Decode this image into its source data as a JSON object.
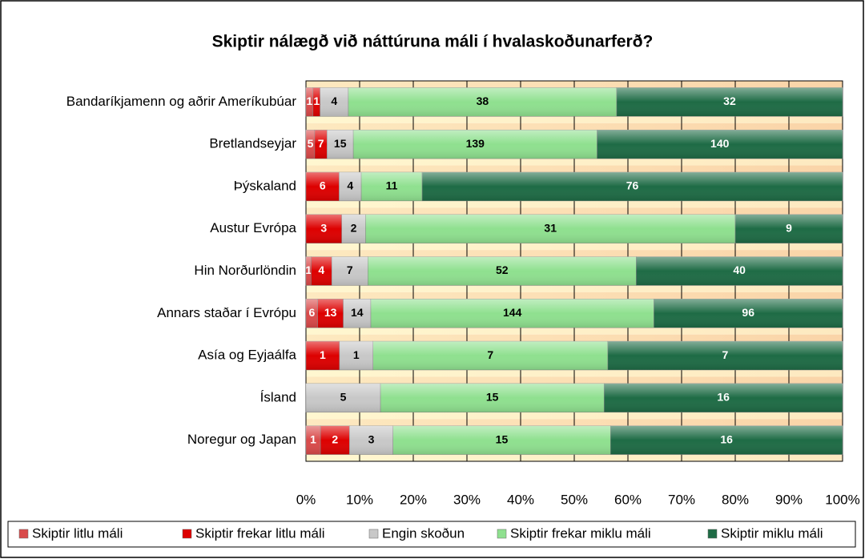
{
  "chart_data": {
    "type": "stacked_percent_barh",
    "title": "Skiptir nálægð við náttúruna máli í hvalaskoðunarferð?",
    "categories": [
      "Bandaríkjamenn og aðrir Ameríkubúar",
      "Bretlandseyjar",
      "Þýskaland",
      "Austur Evrópa",
      "Hin Norðurlöndin",
      "Annars staðar í Evrópu",
      "Asía og Eyjaálfa",
      "Ísland",
      "Noregur og Japan"
    ],
    "series": [
      {
        "name": "Skiptir litlu máli",
        "color": "#d94a4a",
        "values": [
          1,
          5,
          null,
          null,
          1,
          6,
          null,
          null,
          1
        ]
      },
      {
        "name": "Skiptir frekar litlu máli",
        "color": "#dd0000",
        "values": [
          1,
          7,
          6,
          3,
          4,
          13,
          1,
          null,
          2
        ]
      },
      {
        "name": "Engin skoðun",
        "color": "#c8c8c8",
        "values": [
          4,
          15,
          4,
          2,
          7,
          14,
          1,
          5,
          3
        ]
      },
      {
        "name": "Skiptir frekar miklu máli",
        "color": "#8fe08f",
        "values": [
          38,
          139,
          11,
          31,
          52,
          144,
          7,
          15,
          15
        ]
      },
      {
        "name": "Skiptir miklu máli",
        "color": "#1e6b45",
        "values": [
          32,
          140,
          76,
          9,
          40,
          96,
          7,
          16,
          16
        ]
      }
    ],
    "xlim": [
      0,
      100
    ],
    "xticks": [
      {
        "value": 0,
        "label": "0%"
      },
      {
        "value": 10,
        "label": "10%"
      },
      {
        "value": 20,
        "label": "20%"
      },
      {
        "value": 30,
        "label": "30%"
      },
      {
        "value": 40,
        "label": "40%"
      },
      {
        "value": 50,
        "label": "50%"
      },
      {
        "value": 60,
        "label": "60%"
      },
      {
        "value": 70,
        "label": "70%"
      },
      {
        "value": 80,
        "label": "80%"
      },
      {
        "value": 90,
        "label": "90%"
      },
      {
        "value": 100,
        "label": "100%"
      }
    ],
    "grid": true,
    "legend": "bottom"
  }
}
